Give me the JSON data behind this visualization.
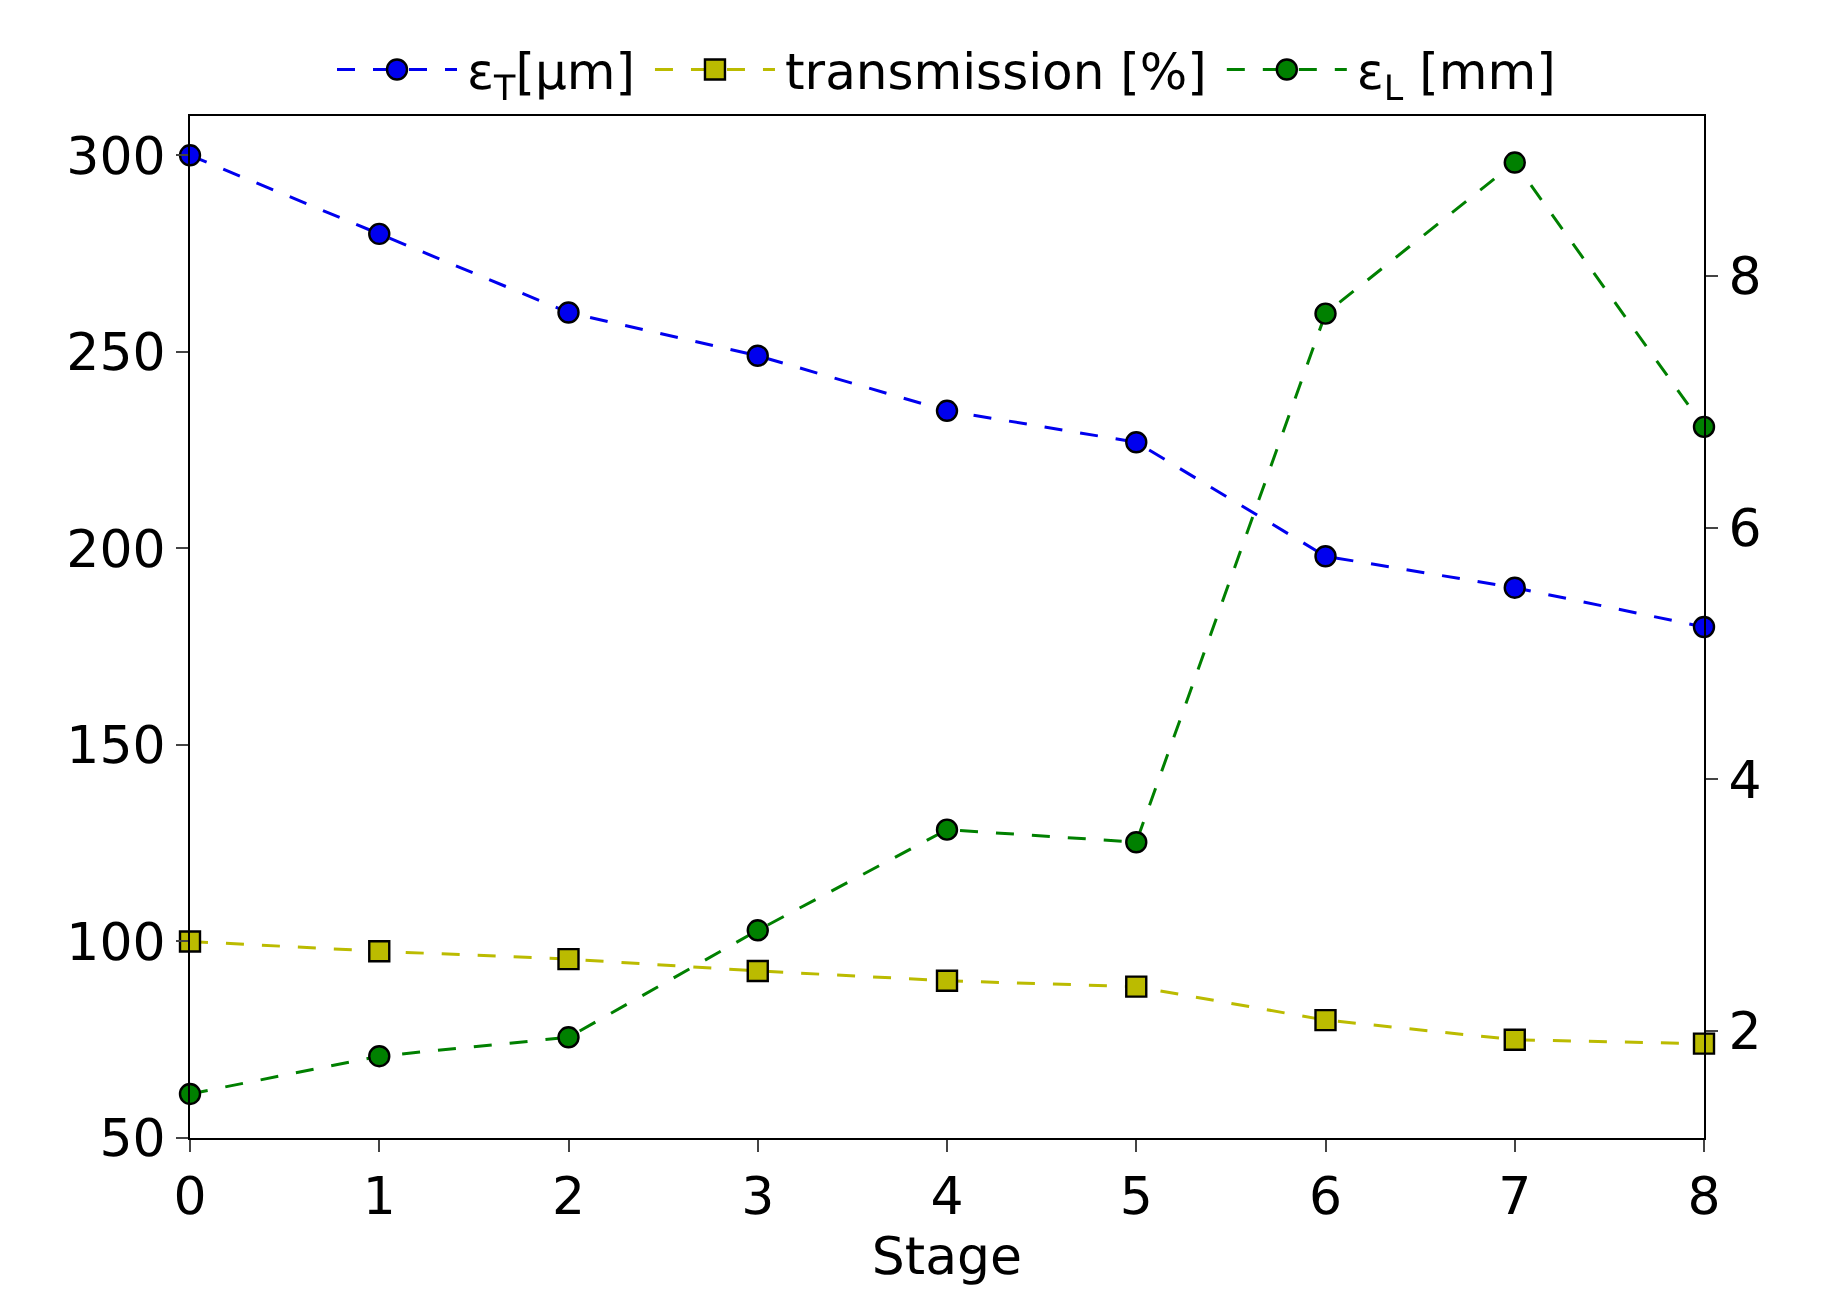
{
  "chart_data": {
    "type": "line",
    "xlabel": "Stage",
    "x": [
      0,
      1,
      2,
      3,
      4,
      5,
      6,
      7,
      8
    ],
    "xlim": [
      0,
      8
    ],
    "xticks": [
      0,
      1,
      2,
      3,
      4,
      5,
      6,
      7,
      8
    ],
    "ylim": [
      50,
      310
    ],
    "yticks": [
      50,
      100,
      150,
      200,
      250,
      300
    ],
    "y2lim": [
      1.15,
      9.27
    ],
    "y2ticks": [
      2,
      4,
      6,
      8
    ],
    "legend": "top",
    "line_style": "dashed",
    "series": [
      {
        "name": "ε$_{T}$[μm]",
        "color": "#0000ee",
        "marker": "circle",
        "values": [
          300,
          280,
          260,
          249,
          235,
          227,
          198,
          190,
          180
        ]
      },
      {
        "name": "transmission [%]",
        "color": "#bbbb00",
        "marker": "square",
        "values": [
          100,
          97.5,
          95.5,
          92.5,
          90,
          88.5,
          80,
          75,
          74
        ]
      },
      {
        "name": "ε$_{L}$ [mm]",
        "color": "#008000",
        "marker": "circle",
        "axis": "y2",
        "values": [
          1.5,
          1.8,
          1.95,
          2.8,
          3.6,
          3.5,
          7.7,
          8.9,
          6.8
        ]
      }
    ]
  }
}
